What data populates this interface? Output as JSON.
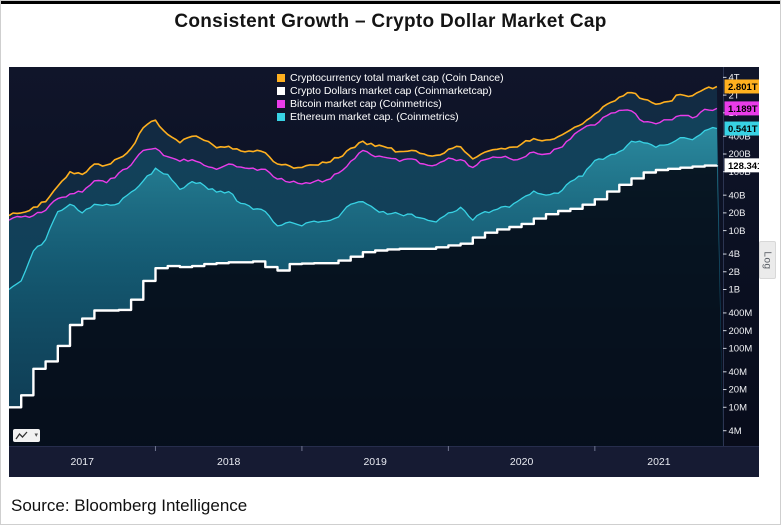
{
  "header": {
    "title": "Consistent Growth – Crypto Dollar Market Cap"
  },
  "footer": {
    "source": "Source: Bloomberg Intelligence"
  },
  "axis_options": {
    "log_label": "Log"
  },
  "icons": {
    "chart_type": "line-chart-icon",
    "dropdown": "▾"
  },
  "chart_data": {
    "type": "line",
    "scale": "log",
    "legend_position": "top-center",
    "x_domain": [
      2017.0,
      2021.875
    ],
    "y_domain": [
      2200000,
      6000000000000
    ],
    "x_start": 2017.0,
    "x_step": "monthly",
    "x_range_labels": [
      "2017-01",
      "2021-11"
    ],
    "x_tick_years": [
      2017,
      2018,
      2019,
      2020,
      2021
    ],
    "y_ticks": [
      {
        "label": "4T",
        "value": 4000000000000
      },
      {
        "label": "2T",
        "value": 2000000000000
      },
      {
        "label": "1T",
        "value": 1000000000000
      },
      {
        "label": "400B",
        "value": 400000000000
      },
      {
        "label": "200B",
        "value": 200000000000
      },
      {
        "label": "100B",
        "value": 100000000000
      },
      {
        "label": "40B",
        "value": 40000000000
      },
      {
        "label": "20B",
        "value": 20000000000
      },
      {
        "label": "10B",
        "value": 10000000000
      },
      {
        "label": "4B",
        "value": 4000000000
      },
      {
        "label": "2B",
        "value": 2000000000
      },
      {
        "label": "1B",
        "value": 1000000000
      },
      {
        "label": "400M",
        "value": 400000000
      },
      {
        "label": "200M",
        "value": 200000000
      },
      {
        "label": "100M",
        "value": 100000000
      },
      {
        "label": "40M",
        "value": 40000000
      },
      {
        "label": "20M",
        "value": 20000000
      },
      {
        "label": "10M",
        "value": 10000000
      },
      {
        "label": "4M",
        "value": 4000000
      }
    ],
    "values_unit": "USD billions, monthly Jan 2017 - Nov 2021",
    "series": [
      {
        "name": "total",
        "legend": "Cryptocurrency total market cap (Coin Dance)",
        "color": "#ffb01f",
        "last_label": "2.801T",
        "values_billions": [
          18,
          20,
          25,
          31,
          57,
          100,
          90,
          135,
          130,
          170,
          250,
          560,
          750,
          430,
          310,
          400,
          340,
          255,
          270,
          225,
          220,
          210,
          135,
          125,
          118,
          130,
          142,
          172,
          250,
          330,
          270,
          255,
          220,
          230,
          200,
          190,
          240,
          265,
          165,
          215,
          240,
          260,
          295,
          365,
          345,
          395,
          510,
          650,
          950,
          1400,
          1850,
          2200,
          1700,
          1400,
          1550,
          2050,
          1950,
          2550,
          2801
        ]
      },
      {
        "name": "crypto_dollars",
        "legend": "Crypto Dollars market cap (Coinmarketcap)",
        "color": "#ffffff",
        "last_label": "128.341B",
        "step": true,
        "values_billions": [
          0.01,
          0.016,
          0.045,
          0.06,
          0.11,
          0.25,
          0.32,
          0.44,
          0.44,
          0.45,
          0.67,
          1.4,
          2.3,
          2.5,
          2.4,
          2.5,
          2.7,
          2.8,
          2.9,
          2.9,
          3.0,
          2.4,
          2.1,
          2.7,
          2.75,
          2.8,
          2.8,
          3.1,
          3.6,
          4.3,
          4.6,
          4.8,
          4.9,
          4.9,
          4.9,
          5.2,
          5.6,
          6.0,
          7.6,
          9.2,
          10.5,
          11.5,
          13.0,
          16.0,
          19.0,
          21.5,
          23.5,
          27.5,
          34,
          46,
          60,
          77,
          97,
          107,
          112,
          117,
          122,
          127,
          128.341
        ]
      },
      {
        "name": "bitcoin",
        "legend": "Bitcoin market cap (Coinmetrics)",
        "color": "#ea3cea",
        "last_label": "1.189T",
        "values_billions": [
          15,
          17,
          18,
          22,
          35,
          42,
          45,
          70,
          65,
          95,
          130,
          230,
          250,
          180,
          150,
          160,
          128,
          110,
          135,
          120,
          115,
          110,
          75,
          66,
          62,
          68,
          72,
          95,
          150,
          230,
          180,
          172,
          150,
          165,
          135,
          131,
          170,
          160,
          118,
          160,
          175,
          168,
          170,
          215,
          200,
          250,
          360,
          540,
          620,
          900,
          1100,
          1080,
          700,
          650,
          760,
          900,
          820,
          1150,
          1189
        ]
      },
      {
        "name": "ethereum",
        "legend": "Ethereum market cap. (Coinmetrics)",
        "color": "#38d2e4",
        "last_label": "0.541T",
        "values_billions": [
          1.0,
          1.4,
          4.5,
          7,
          21,
          28,
          20,
          28,
          28,
          29,
          45,
          70,
          115,
          90,
          50,
          68,
          58,
          45,
          46,
          29,
          23,
          21,
          12,
          14,
          12,
          14.5,
          14.5,
          17,
          28,
          31,
          23,
          19,
          19,
          19,
          16,
          14,
          20,
          25,
          15,
          21,
          23,
          25,
          35,
          47,
          40,
          43,
          68,
          84,
          155,
          180,
          220,
          330,
          310,
          260,
          290,
          380,
          350,
          500,
          541
        ]
      }
    ]
  }
}
